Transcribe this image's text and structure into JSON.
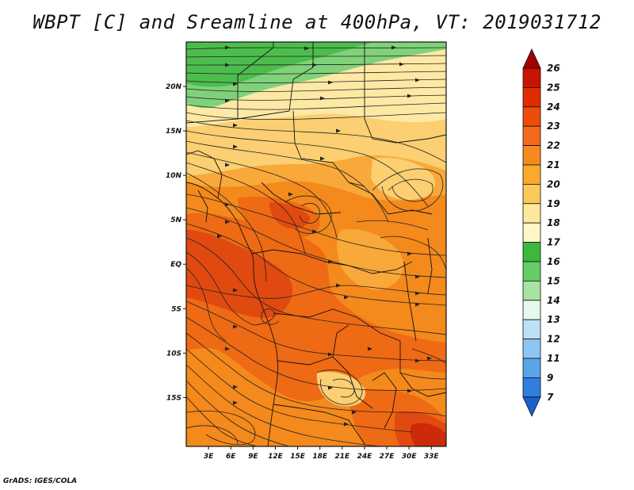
{
  "title": "WBPT [C] and Sreamline at 400hPa, VT: 2019031712",
  "footer": "GrADS: IGES/COLA",
  "map": {
    "variable": "Wet-bulb potential temperature (C) with streamlines",
    "level": "400hPa",
    "lon_range": [
      0,
      35
    ],
    "lat_range": [
      -20.5,
      25
    ],
    "lat_labels": [
      "20N",
      "15N",
      "10N",
      "5N",
      "EQ",
      "5S",
      "10S",
      "15S"
    ],
    "lat_values": [
      20,
      15,
      10,
      5,
      0,
      -5,
      -10,
      -15
    ],
    "lon_labels": [
      "3E",
      "6E",
      "9E",
      "12E",
      "15E",
      "18E",
      "21E",
      "24E",
      "27E",
      "30E",
      "33E"
    ],
    "lon_values": [
      3,
      6,
      9,
      12,
      15,
      18,
      21,
      24,
      27,
      30,
      33
    ]
  },
  "colorbar": {
    "labels": [
      "26",
      "25",
      "24",
      "23",
      "22",
      "21",
      "20",
      "19",
      "18",
      "17",
      "16",
      "15",
      "14",
      "13",
      "12",
      "11",
      "9",
      "7"
    ],
    "colors": [
      "#a50000",
      "#c81400",
      "#e02c00",
      "#ee4c0a",
      "#f46a1c",
      "#f78a1e",
      "#f9a92c",
      "#fbc95a",
      "#fde89b",
      "#fff7c8",
      "#3cb83c",
      "#66cc66",
      "#a6e4a0",
      "#e6f7ee",
      "#bde0f7",
      "#8ec6f2",
      "#5aa5ea",
      "#2f7fdc",
      "#1c5fd0"
    ]
  },
  "colors": {
    "green": "#4cbd4c",
    "lightgreen": "#7fd27a",
    "paleyellow": "#fde9a4",
    "yellow": "#fbcf72",
    "lightorange": "#f9a83a",
    "orange": "#f4891c",
    "darkorange": "#ef6a14",
    "red": "#e04a10",
    "darkred": "#cc2a0a"
  }
}
